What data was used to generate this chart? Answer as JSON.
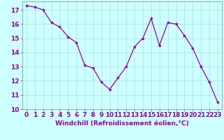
{
  "x": [
    0,
    1,
    2,
    3,
    4,
    5,
    6,
    7,
    8,
    9,
    10,
    11,
    12,
    13,
    14,
    15,
    16,
    17,
    18,
    19,
    20,
    21,
    22,
    23
  ],
  "y": [
    17.3,
    17.2,
    17.0,
    16.1,
    15.8,
    15.1,
    14.7,
    13.1,
    12.9,
    11.9,
    11.4,
    12.2,
    13.0,
    14.4,
    15.0,
    16.4,
    14.5,
    16.1,
    16.0,
    15.2,
    14.3,
    13.0,
    11.9,
    10.5
  ],
  "line_color": "#990099",
  "marker": "*",
  "marker_size": 3,
  "bg_color": "#ccffff",
  "grid_color": "#aadddd",
  "xlabel": "Windchill (Refroidissement éolien,°C)",
  "xlim": [
    -0.5,
    23.5
  ],
  "ylim": [
    10,
    17.6
  ],
  "yticks": [
    10,
    11,
    12,
    13,
    14,
    15,
    16,
    17
  ],
  "xticks": [
    0,
    1,
    2,
    3,
    4,
    5,
    6,
    7,
    8,
    9,
    10,
    11,
    12,
    13,
    14,
    15,
    16,
    17,
    18,
    19,
    20,
    21,
    22,
    23
  ],
  "xlabel_fontsize": 6.5,
  "tick_fontsize": 6.5
}
